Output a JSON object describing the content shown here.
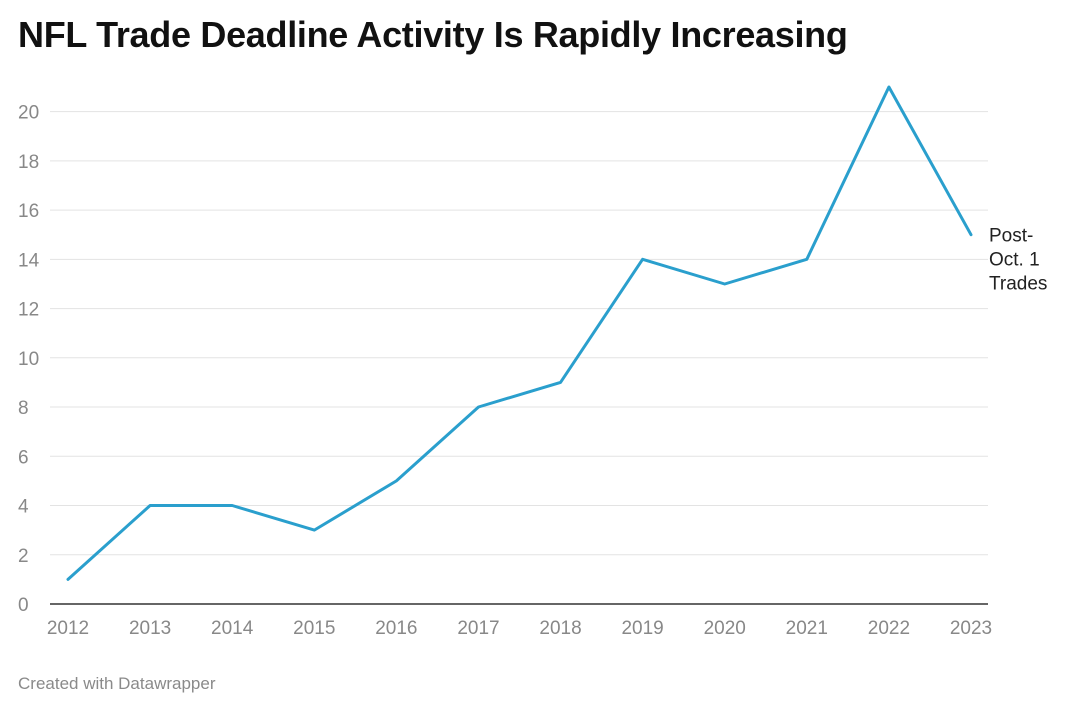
{
  "header": {
    "title": "NFL Trade Deadline Activity Is Rapidly Increasing"
  },
  "footer": {
    "credit": "Created with Datawrapper"
  },
  "chart_data": {
    "type": "line",
    "title": "NFL Trade Deadline Activity Is Rapidly Increasing",
    "x": [
      "2012",
      "2013",
      "2014",
      "2015",
      "2016",
      "2017",
      "2018",
      "2019",
      "2020",
      "2021",
      "2022",
      "2023"
    ],
    "series": [
      {
        "name": "Post-Oct. 1 Trades",
        "label_lines": [
          "Post-",
          "Oct. 1",
          "Trades"
        ],
        "values": [
          1,
          4,
          4,
          3,
          5,
          8,
          9,
          14,
          13,
          14,
          21,
          15
        ]
      }
    ],
    "ylim": [
      0,
      21
    ],
    "yticks": [
      0,
      2,
      4,
      6,
      8,
      10,
      12,
      14,
      16,
      18,
      20
    ],
    "grid": true,
    "xlabel": "",
    "ylabel": "",
    "colors": {
      "line": "#2a9fcd",
      "grid": "#e3e3e3",
      "axis": "#333333"
    }
  }
}
